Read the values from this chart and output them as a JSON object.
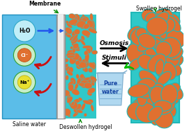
{
  "bg_color": "#ffffff",
  "saline_color": "#5bbde8",
  "saline_border": "#2090c0",
  "membrane_color": "#d8d8d8",
  "membrane_border": "#909090",
  "hydrogel_bg": "#30c8c8",
  "hydrogel_cell": "#e07030",
  "hydrogel_border": "#20b8b8",
  "water_fill": "#b0d8f0",
  "water_dark": "#80b0d0",
  "title_text": "Membrane",
  "saline_label": "Saline water",
  "deswollen_label": "Deswollen hydrogel",
  "swollen_label": "Swollen hydrogel",
  "osmosis_label": "Osmosis",
  "stimuli_label": "Stimuli",
  "pure_water_label": "Pure\nwater",
  "h2o_label": "H₂O",
  "cl_label": "Cl⁻",
  "na_label": "Na⁺",
  "arrow_black": "#000000",
  "arrow_red": "#cc1010",
  "arrow_blue": "#2255ee",
  "arrow_green": "#00bb00",
  "label_green": "#008800"
}
